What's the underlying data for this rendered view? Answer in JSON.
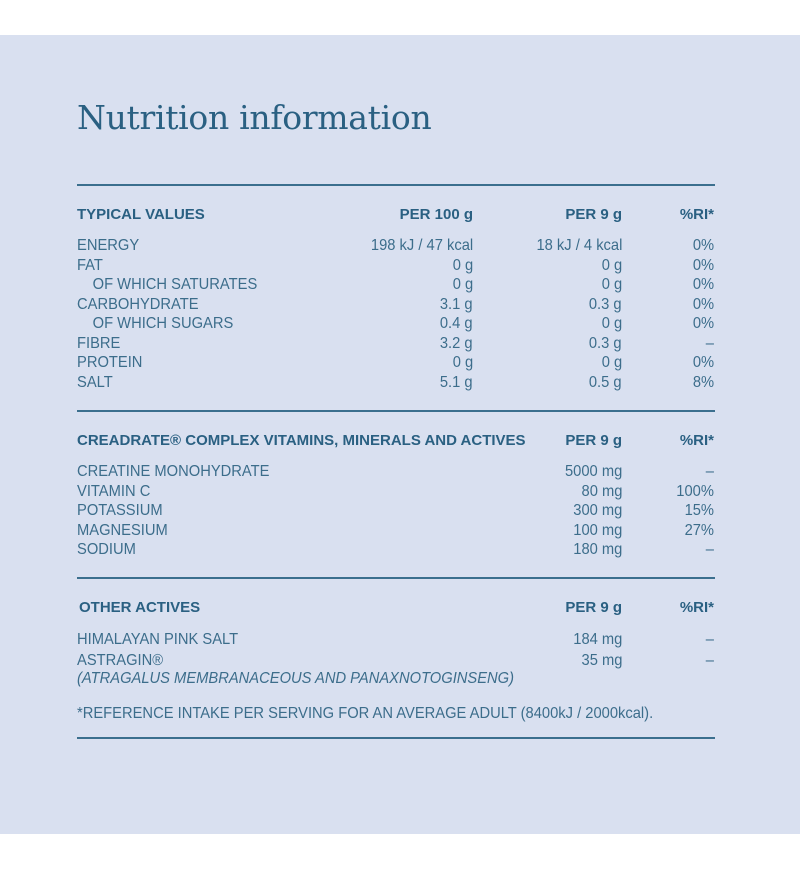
{
  "title": "Nutrition information",
  "typical": {
    "headers": {
      "name": "TYPICAL VALUES",
      "per100": "PER 100 g",
      "per9": "PER 9 g",
      "ri": "%RI*"
    },
    "rows": [
      {
        "name": "ENERGY",
        "per100": "198 kJ / 47 kcal",
        "per9": "18 kJ / 4 kcal",
        "ri": "0%",
        "indent": false
      },
      {
        "name": "FAT",
        "per100": "0 g",
        "per9": "0 g",
        "ri": "0%",
        "indent": false
      },
      {
        "name": "OF WHICH SATURATES",
        "per100": "0 g",
        "per9": "0 g",
        "ri": "0%",
        "indent": true
      },
      {
        "name": "CARBOHYDRATE",
        "per100": "3.1 g",
        "per9": "0.3 g",
        "ri": "0%",
        "indent": false
      },
      {
        "name": "OF WHICH SUGARS",
        "per100": "0.4 g",
        "per9": "0 g",
        "ri": "0%",
        "indent": true
      },
      {
        "name": "FIBRE",
        "per100": "3.2 g",
        "per9": "0.3 g",
        "ri": "–",
        "indent": false
      },
      {
        "name": "PROTEIN",
        "per100": "0 g",
        "per9": "0 g",
        "ri": "0%",
        "indent": false
      },
      {
        "name": "SALT",
        "per100": "5.1 g",
        "per9": "0.5 g",
        "ri": "8%",
        "indent": false
      }
    ]
  },
  "complex": {
    "headers": {
      "name": "CREADRATE® COMPLEX VITAMINS, MINERALS AND ACTIVES",
      "per9": "PER 9 g",
      "ri": "%RI*"
    },
    "rows": [
      {
        "name": "CREATINE MONOHYDRATE",
        "per9": "5000 mg",
        "ri": "–"
      },
      {
        "name": "VITAMIN C",
        "per9": "80 mg",
        "ri": "100%"
      },
      {
        "name": "POTASSIUM",
        "per9": "300 mg",
        "ri": "15%"
      },
      {
        "name": "MAGNESIUM",
        "per9": "100 mg",
        "ri": "27%"
      },
      {
        "name": "SODIUM",
        "per9": "180 mg",
        "ri": "–"
      }
    ]
  },
  "other": {
    "headers": {
      "name": "OTHER ACTIVES",
      "per9": "PER 9 g",
      "ri": "%RI*"
    },
    "rows": [
      {
        "name": "HIMALAYAN PINK SALT",
        "per9": "184 mg",
        "ri": "–"
      },
      {
        "name": "ASTRAGIN®",
        "per9": "35 mg",
        "ri": "–"
      }
    ],
    "astragin_sub": "(ATRAGALUS MEMBRANACEOUS AND PANAXNOTOGINSENG)"
  },
  "footnote": "*REFERENCE INTAKE PER SERVING FOR AN AVERAGE ADULT (8400kJ / 2000kcal)."
}
